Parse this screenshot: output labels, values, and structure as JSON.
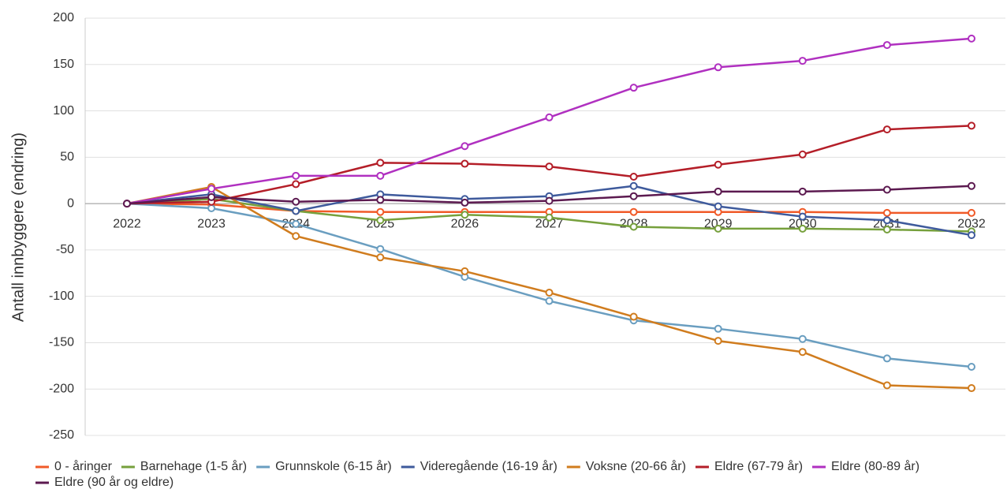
{
  "chart_data": {
    "type": "line",
    "y_label": "Antall innbyggere (endring)",
    "categories": [
      "2022",
      "2023",
      "2024",
      "2025",
      "2026",
      "2027",
      "2028",
      "2029",
      "2030",
      "2031",
      "2032"
    ],
    "ylim": [
      -250,
      200
    ],
    "yticks": [
      -250,
      -200,
      -150,
      -100,
      -50,
      0,
      50,
      100,
      150,
      200
    ],
    "grid": true,
    "series": [
      {
        "name": "0 - åringer",
        "color": "#f05a28",
        "values": [
          0,
          -1,
          -8,
          -9,
          -9,
          -9,
          -9,
          -9,
          -9,
          -10,
          -10
        ]
      },
      {
        "name": "Barnehage (1-5 år)",
        "color": "#76a03c",
        "values": [
          0,
          5,
          -8,
          -18,
          -12,
          -15,
          -25,
          -27,
          -27,
          -28,
          -30
        ]
      },
      {
        "name": "Grunnskole (6-15 år)",
        "color": "#6a9ec0",
        "values": [
          0,
          -5,
          -22,
          -49,
          -79,
          -105,
          -126,
          -135,
          -146,
          -167,
          -176
        ]
      },
      {
        "name": "Videregående (16-19 år)",
        "color": "#3e5a9c",
        "values": [
          0,
          10,
          -8,
          10,
          5,
          8,
          19,
          -3,
          -14,
          -18,
          -34
        ]
      },
      {
        "name": "Voksne (20-66 år)",
        "color": "#d07c1e",
        "values": [
          0,
          18,
          -35,
          -58,
          -73,
          -96,
          -122,
          -148,
          -160,
          -196,
          -199
        ]
      },
      {
        "name": "Eldre (67-79 år)",
        "color": "#b41e28",
        "values": [
          0,
          2,
          21,
          44,
          43,
          40,
          29,
          42,
          53,
          80,
          84
        ]
      },
      {
        "name": "Eldre (80-89 år)",
        "color": "#b030c0",
        "values": [
          0,
          16,
          30,
          30,
          62,
          93,
          125,
          147,
          154,
          171,
          178
        ]
      },
      {
        "name": "Eldre (90 år og eldre)",
        "color": "#5c1a50",
        "values": [
          0,
          7,
          2,
          4,
          1,
          3,
          8,
          13,
          13,
          15,
          19
        ]
      }
    ]
  }
}
